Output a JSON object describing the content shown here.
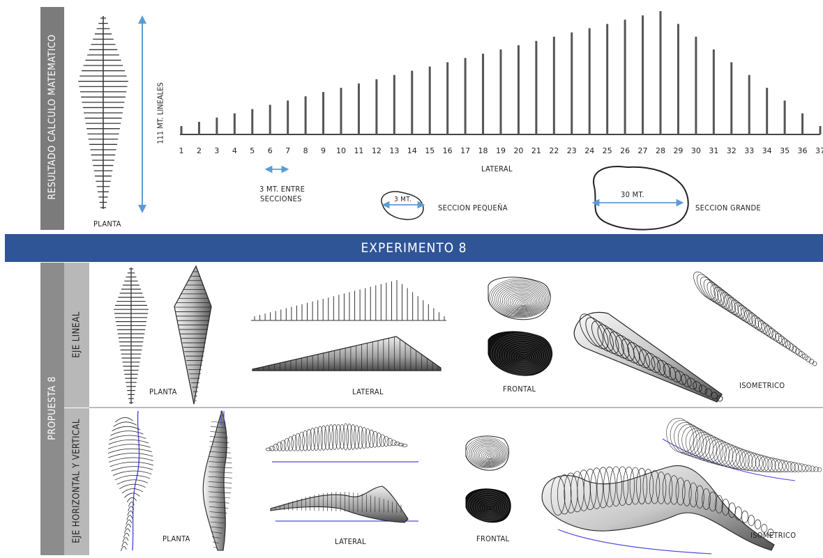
{
  "header": {
    "side_title": "RESULTADO CALCULO MATEMATICO",
    "length_label": "111 MT. LINEALES",
    "plan_label": "PLANTA",
    "lateral_label": "LATERAL",
    "spacing_label_line1": "3 MT. ENTRE",
    "spacing_label_line2": "SECCIONES",
    "small_section_dim": "3 MT.",
    "small_section_label": "SECCION PEQUEÑA",
    "large_section_dim": "30 MT.",
    "large_section_label": "SECCION GRANDE"
  },
  "section_numbers": [
    "1",
    "2",
    "3",
    "4",
    "5",
    "6",
    "7",
    "8",
    "9",
    "10",
    "11",
    "12",
    "13",
    "14",
    "15",
    "16",
    "17",
    "18",
    "19",
    "20",
    "21",
    "22",
    "23",
    "24",
    "25",
    "26",
    "27",
    "28",
    "29",
    "30",
    "31",
    "32",
    "33",
    "34",
    "35",
    "36",
    "37"
  ],
  "banner": {
    "title": "EXPERIMENTO 8"
  },
  "proposal": {
    "title": "PROPUESTA 8",
    "row1": {
      "title": "EJE LINEAL",
      "plan": "PLANTA",
      "lateral": "LATERAL",
      "frontal": "FRONTAL",
      "iso": "ISOMETRICO"
    },
    "row2": {
      "title": "EJE HORIZONTAL Y VERTICAL",
      "plan": "PLANTA",
      "lateral": "LATERAL",
      "frontal": "FRONTAL",
      "iso": "ISOMETRICO"
    }
  },
  "colors": {
    "accent_blue": "#5b9bd5",
    "banner_blue": "#2f5597",
    "axis_blue": "#4a4adf"
  }
}
